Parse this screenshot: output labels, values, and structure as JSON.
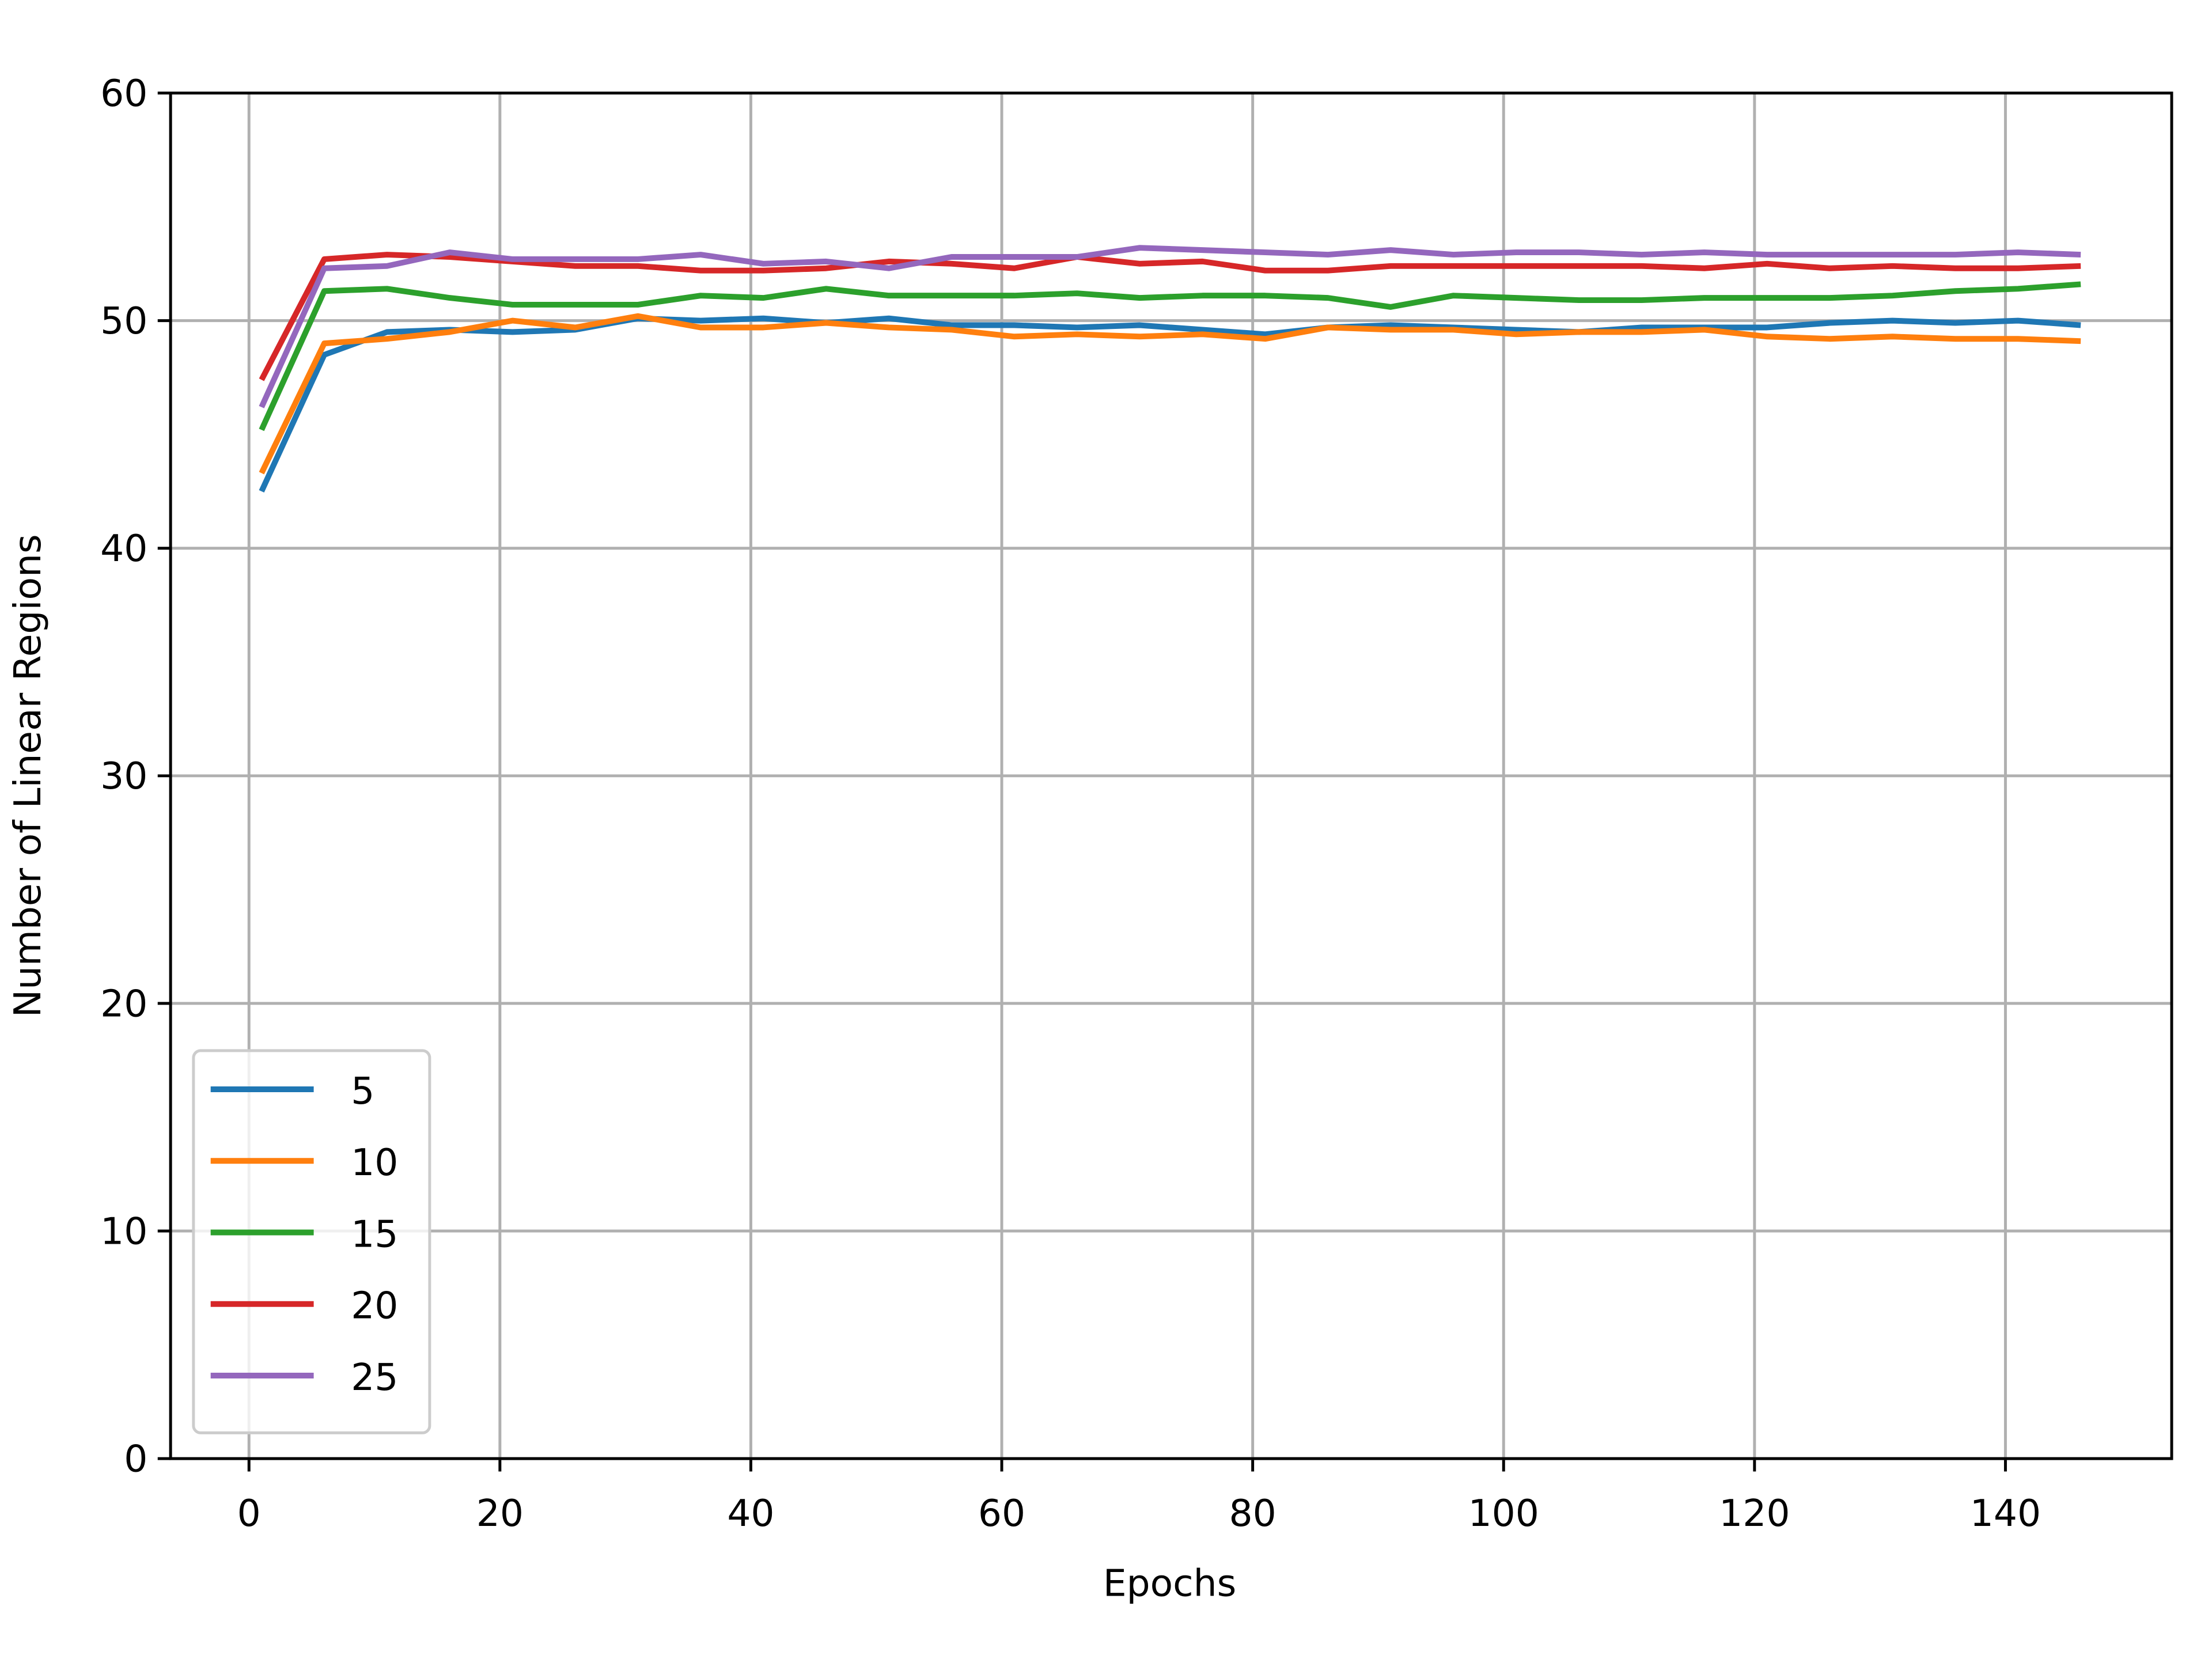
{
  "chart_data": {
    "type": "line",
    "x_label": "Epochs",
    "y_label": "Number of Linear Regions",
    "x": [
      1,
      6,
      11,
      16,
      21,
      26,
      31,
      36,
      41,
      46,
      51,
      56,
      61,
      66,
      71,
      76,
      81,
      86,
      91,
      96,
      101,
      106,
      111,
      116,
      121,
      126,
      131,
      136,
      141,
      146
    ],
    "series": [
      {
        "name": "5",
        "color": "#1f77b4",
        "values": [
          42.5,
          48.5,
          49.5,
          49.6,
          49.5,
          49.6,
          50.1,
          50.0,
          50.1,
          49.9,
          50.1,
          49.8,
          49.8,
          49.7,
          49.8,
          49.6,
          49.4,
          49.7,
          49.8,
          49.7,
          49.6,
          49.5,
          49.7,
          49.7,
          49.7,
          49.9,
          50.0,
          49.9,
          50.0,
          49.8
        ]
      },
      {
        "name": "10",
        "color": "#ff7f0e",
        "values": [
          43.3,
          49.0,
          49.2,
          49.5,
          50.0,
          49.7,
          50.2,
          49.7,
          49.7,
          49.9,
          49.7,
          49.6,
          49.3,
          49.4,
          49.3,
          49.4,
          49.2,
          49.7,
          49.6,
          49.6,
          49.4,
          49.5,
          49.5,
          49.6,
          49.3,
          49.2,
          49.3,
          49.2,
          49.2,
          49.1
        ]
      },
      {
        "name": "15",
        "color": "#2ca02c",
        "values": [
          45.2,
          51.3,
          51.4,
          51.0,
          50.7,
          50.7,
          50.7,
          51.1,
          51.0,
          51.4,
          51.1,
          51.1,
          51.1,
          51.2,
          51.0,
          51.1,
          51.1,
          51.0,
          50.6,
          51.1,
          51.0,
          50.9,
          50.9,
          51.0,
          51.0,
          51.0,
          51.1,
          51.3,
          51.4,
          51.6
        ]
      },
      {
        "name": "20",
        "color": "#d62728",
        "values": [
          47.4,
          52.7,
          52.9,
          52.8,
          52.6,
          52.4,
          52.4,
          52.2,
          52.2,
          52.3,
          52.6,
          52.5,
          52.3,
          52.8,
          52.5,
          52.6,
          52.2,
          52.2,
          52.4,
          52.4,
          52.4,
          52.4,
          52.4,
          52.3,
          52.5,
          52.3,
          52.4,
          52.3,
          52.3,
          52.4
        ]
      },
      {
        "name": "25",
        "color": "#9467bd",
        "values": [
          46.2,
          52.3,
          52.4,
          53.0,
          52.7,
          52.7,
          52.7,
          52.9,
          52.5,
          52.6,
          52.3,
          52.8,
          52.8,
          52.8,
          53.2,
          53.1,
          53.0,
          52.9,
          53.1,
          52.9,
          53.0,
          53.0,
          52.9,
          53.0,
          52.9,
          52.9,
          52.9,
          52.9,
          53.0,
          52.9
        ]
      }
    ],
    "xlim": [
      -6.25,
      153.25
    ],
    "xticks": [
      0,
      20,
      40,
      60,
      80,
      100,
      120,
      140
    ],
    "ylim": [
      0,
      60
    ],
    "yticks": [
      0,
      10,
      20,
      30,
      40,
      50,
      60
    ],
    "grid": true,
    "legend": "lower left"
  }
}
